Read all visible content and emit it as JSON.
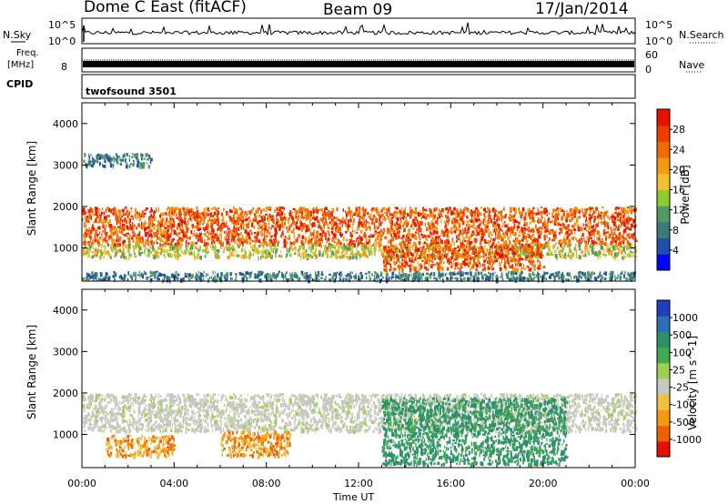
{
  "header": {
    "title": "Dome C East (fitACF)",
    "beam": "Beam 09",
    "date": "17/Jan/2014"
  },
  "strips": {
    "nsky_label": "N.Sky",
    "nsky_ticks": [
      "10^5",
      "10^0"
    ],
    "nsearch_label": "N.Search",
    "nsearch_ticks": [
      "10^5",
      "10^0"
    ],
    "freq_label_line1": "Freq.",
    "freq_label_line2": "[MHz]",
    "freq_tick": "8",
    "nave_label": "Nave",
    "nave_ticks": [
      "60",
      "0"
    ],
    "cpid_label": "CPID",
    "cpid_value": "twofsound 3501"
  },
  "colors": {
    "power_scale": [
      "#0000ff",
      "#1f4fa8",
      "#3a7a7a",
      "#4f9a60",
      "#8fcc30",
      "#f4c030",
      "#f39a10",
      "#f36b00",
      "#ef3a00",
      "#e81000"
    ],
    "velocity_scale": [
      "#1f3fbf",
      "#2b6fb5",
      "#2e8f6b",
      "#3faa50",
      "#9fd050",
      "#c8c8c0",
      "#f0c040",
      "#f39a10",
      "#f06000",
      "#e51000"
    ]
  },
  "chart_data": [
    {
      "type": "heatmap",
      "name": "power-panel",
      "title": "",
      "xlabel": "",
      "ylabel": "Slant Range [km]",
      "xlim": [
        "00:00",
        "24:00"
      ],
      "ylim": [
        200,
        4500
      ],
      "x_ticks": [
        "00:00",
        "04:00",
        "08:00",
        "12:00",
        "16:00",
        "20:00",
        "00:00"
      ],
      "y_ticks": [
        "1000",
        "2000",
        "3000",
        "4000"
      ],
      "colorbar_label": "Power [dB]",
      "colorbar_ticks": [
        "4",
        "8",
        "12",
        "16",
        "20",
        "24",
        "28"
      ],
      "colorbar_range": [
        0,
        32
      ],
      "bands": [
        {
          "t_start": 0,
          "t_end": 24,
          "range_lo": 1100,
          "range_hi": 2000,
          "level": "high"
        },
        {
          "t_start": 0,
          "t_end": 24,
          "range_lo": 800,
          "range_hi": 1100,
          "level": "medium"
        },
        {
          "t_start": 0,
          "t_end": 24,
          "range_lo": 250,
          "range_hi": 450,
          "level": "low"
        },
        {
          "t_start": 0,
          "t_end": 3,
          "range_lo": 3000,
          "range_hi": 3300,
          "level": "low"
        },
        {
          "t_start": 13,
          "t_end": 20,
          "range_lo": 500,
          "range_hi": 1100,
          "level": "high"
        }
      ]
    },
    {
      "type": "heatmap",
      "name": "velocity-panel",
      "title": "",
      "xlabel": "Time UT",
      "ylabel": "Slant Range [km]",
      "xlim": [
        "00:00",
        "24:00"
      ],
      "ylim": [
        200,
        4500
      ],
      "x_ticks": [
        "00:00",
        "04:00",
        "08:00",
        "12:00",
        "16:00",
        "20:00",
        "00:00"
      ],
      "y_ticks": [
        "1000",
        "2000",
        "3000",
        "4000"
      ],
      "colorbar_label": "Velocity [m s^-1]",
      "colorbar_ticks": [
        "1000",
        "500",
        "100",
        "25",
        "-25",
        "-100",
        "-500",
        "-1000"
      ],
      "bands": [
        {
          "t_start": 0,
          "t_end": 24,
          "range_lo": 1100,
          "range_hi": 2000,
          "level": "ground-scatter"
        },
        {
          "t_start": 1,
          "t_end": 4,
          "range_lo": 500,
          "range_hi": 1000,
          "level": "negative"
        },
        {
          "t_start": 6,
          "t_end": 9,
          "range_lo": 500,
          "range_hi": 1100,
          "level": "negative"
        },
        {
          "t_start": 13,
          "t_end": 21,
          "range_lo": 300,
          "range_hi": 1900,
          "level": "positive"
        }
      ]
    }
  ]
}
